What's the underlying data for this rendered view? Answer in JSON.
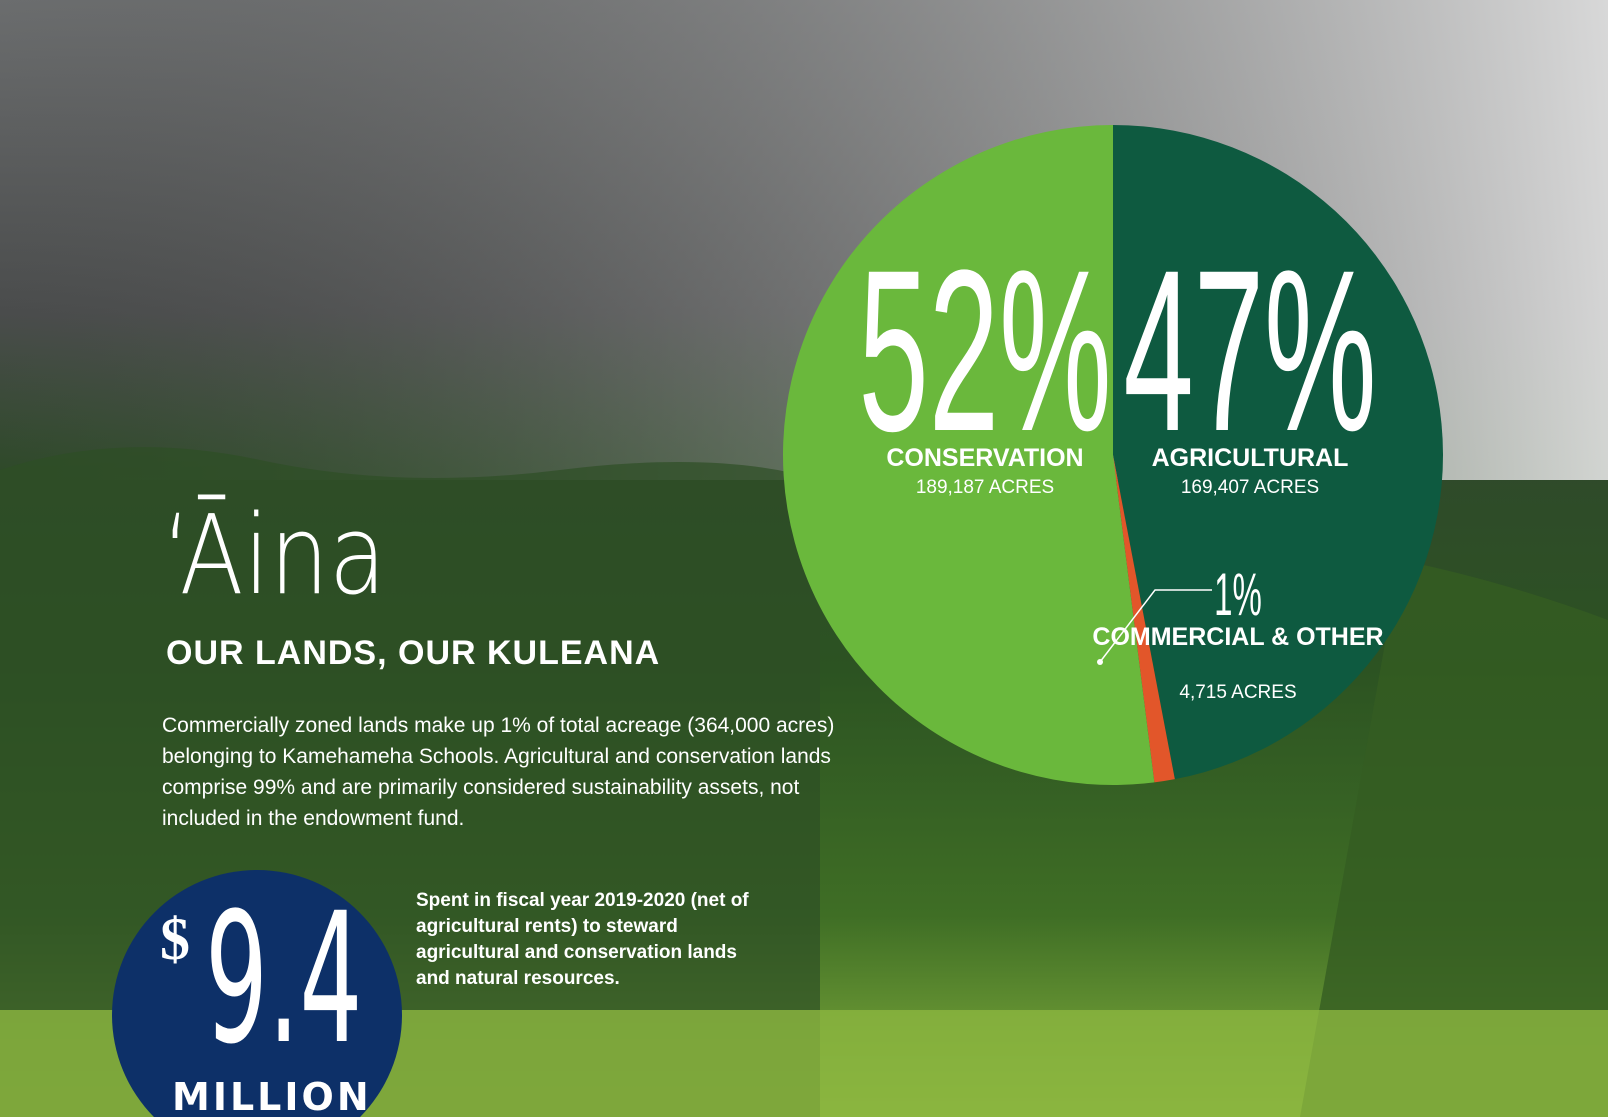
{
  "title": "‘Āina",
  "subtitle": "OUR LANDS, OUR KULEANA",
  "body": "Commercially zoned lands make up 1% of total acreage (364,000 acres) belonging to Kamehameha Schools. Agricultural and conservation lands comprise 99% and are primarily considered sustainability assets, not included in the endowment fund.",
  "stat": {
    "currency": "$",
    "amount": "9.4",
    "unit": "MILLION",
    "description": "Spent in fiscal year 2019-2020 (net of agricultural rents) to steward agricultural and conservation lands and natural resources."
  },
  "chart_data": {
    "type": "pie",
    "categories": [
      "AGRICULTURAL",
      "COMMERCIAL & OTHER",
      "CONSERVATION"
    ],
    "values": [
      47,
      1,
      52
    ],
    "value_labels": [
      "47%",
      "1%",
      "52%"
    ],
    "annotations": [
      "169,407 ACRES",
      "4,715 ACRES",
      "189,187 ACRES"
    ],
    "colors": [
      "#0e5a40",
      "#e2562a",
      "#6ab83c"
    ]
  }
}
